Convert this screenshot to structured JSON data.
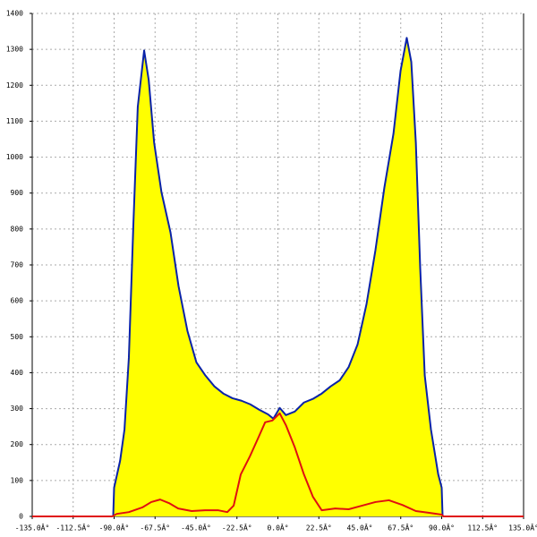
{
  "chart_data": {
    "type": "line",
    "xlim": [
      -135,
      135
    ],
    "ylim": [
      0,
      1400
    ],
    "xticks": [
      {
        "value": -135,
        "label": "-135.0Â°"
      },
      {
        "value": -112.5,
        "label": "-112.5Â°"
      },
      {
        "value": -90,
        "label": "-90.0Â°"
      },
      {
        "value": -67.5,
        "label": "-67.5Â°"
      },
      {
        "value": -45,
        "label": "-45.0Â°"
      },
      {
        "value": -22.5,
        "label": "-22.5Â°"
      },
      {
        "value": 0,
        "label": "0.0Â°"
      },
      {
        "value": 22.5,
        "label": "22.5Â°"
      },
      {
        "value": 45,
        "label": "45.0Â°"
      },
      {
        "value": 67.5,
        "label": "67.5Â°"
      },
      {
        "value": 90,
        "label": "90.0Â°"
      },
      {
        "value": 112.5,
        "label": "112.5Â°"
      },
      {
        "value": 135,
        "label": "135.0Â°"
      }
    ],
    "yticks": [
      0,
      100,
      200,
      300,
      400,
      500,
      600,
      700,
      800,
      900,
      1000,
      1100,
      1200,
      1300,
      1400
    ],
    "grid": true,
    "series": [
      {
        "color": "#0a22a8",
        "fill": "#ffff00",
        "x": [
          -90.5,
          -90,
          -86.7,
          -84.3,
          -81.9,
          -79.4,
          -77,
          -73.5,
          -71,
          -68,
          -64,
          -59,
          -54.6,
          -49.7,
          -44.8,
          -39.8,
          -34.9,
          -30,
          -25,
          -20,
          -15.2,
          -10.3,
          -5.4,
          -2.5,
          1,
          4.4,
          9.3,
          14.3,
          19.2,
          24.1,
          29,
          34,
          38.9,
          43.8,
          48.7,
          53.6,
          58.5,
          63.5,
          67.4,
          70.8,
          73.3,
          75.8,
          78.2,
          80.7,
          84.1,
          88.1,
          90,
          90.5
        ],
        "values": [
          0,
          80,
          155,
          242,
          441,
          815,
          1140,
          1297,
          1215,
          1040,
          903,
          790,
          641,
          516,
          429,
          392,
          362,
          342,
          329,
          322,
          312,
          297,
          284,
          272,
          302,
          282,
          292,
          317,
          327,
          342,
          362,
          379,
          416,
          479,
          591,
          741,
          915,
          1065,
          1240,
          1332,
          1265,
          1040,
          691,
          392,
          242,
          117,
          80,
          0
        ]
      },
      {
        "color": "#e01010",
        "x": [
          -135,
          -91,
          -88.6,
          -81.9,
          -74.5,
          -69.6,
          -64.7,
          -59.8,
          -54.8,
          -47.4,
          -40,
          -32.7,
          -27.8,
          -24.3,
          -20.4,
          -15.4,
          -10.5,
          -7,
          -3,
          1,
          4.4,
          9.3,
          14.3,
          19.2,
          24.1,
          31.5,
          38.9,
          46.3,
          53.6,
          61,
          68.4,
          75.8,
          83.2,
          90,
          91,
          135
        ],
        "values": [
          0,
          0,
          7,
          12,
          25,
          40,
          47,
          37,
          22,
          15,
          17,
          17,
          12,
          30,
          117,
          167,
          222,
          262,
          267,
          287,
          254,
          192,
          117,
          55,
          17,
          22,
          20,
          30,
          40,
          45,
          32,
          15,
          10,
          5,
          0,
          0
        ]
      }
    ]
  }
}
